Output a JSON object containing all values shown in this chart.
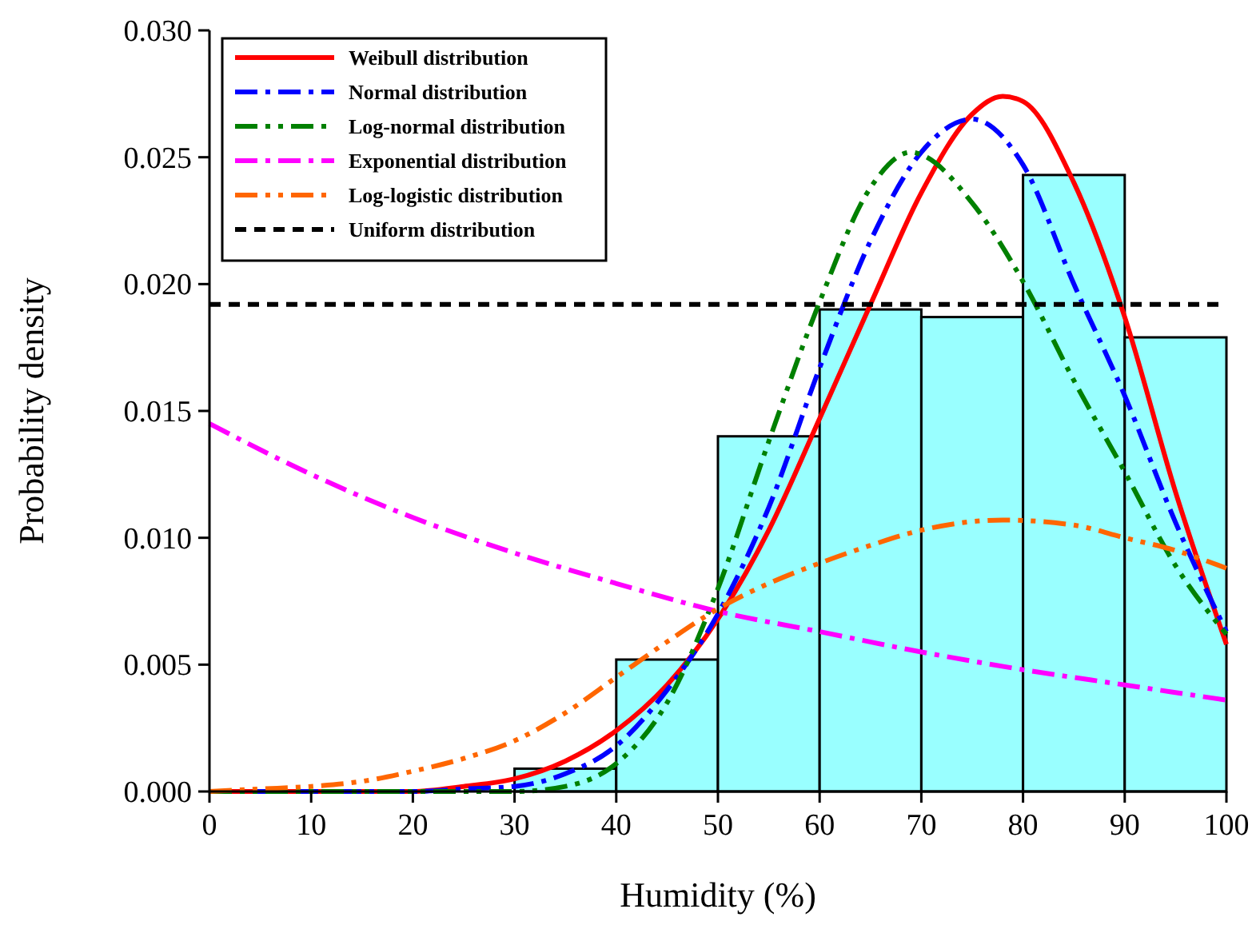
{
  "chart_data": {
    "type": "histogram",
    "xlabel": "Humidity (%)",
    "ylabel": "Probability density",
    "bins": [
      30,
      40,
      50,
      60,
      70,
      80,
      90,
      100
    ],
    "values": [
      0.0009,
      0.0052,
      0.014,
      0.019,
      0.0187,
      0.0243,
      0.0179
    ],
    "color": "#99ffff",
    "xlim": [
      0,
      100
    ],
    "xticks": [
      0,
      10,
      20,
      30,
      40,
      50,
      60,
      70,
      80,
      90,
      100
    ],
    "ylim": [
      0,
      0.03
    ],
    "yticks": [
      {
        "value": 0,
        "label": "0.000"
      },
      {
        "value": 0.005,
        "label": "0.005"
      },
      {
        "value": 0.01,
        "label": "0.010"
      },
      {
        "value": 0.015,
        "label": "0.015"
      },
      {
        "value": 0.02,
        "label": "0.020"
      },
      {
        "value": 0.025,
        "label": "0.025"
      },
      {
        "value": 0.03,
        "label": "0.030"
      }
    ],
    "grid": false,
    "legend": "top left",
    "series": [
      {
        "type": "line",
        "name": "Weibull distribution",
        "color": "#ff0000",
        "line_style": "solid",
        "x": [
          0,
          10,
          20,
          25,
          30,
          35,
          40,
          45,
          50,
          55,
          60,
          65,
          70,
          75,
          78,
          80,
          85,
          90,
          95,
          100
        ],
        "values": [
          0,
          0,
          0,
          0.0002,
          0.0005,
          0.0012,
          0.0024,
          0.0042,
          0.0068,
          0.0103,
          0.0147,
          0.0192,
          0.0236,
          0.0267,
          0.0274,
          0.0272,
          0.024,
          0.0187,
          0.0118,
          0.0058
        ]
      },
      {
        "type": "line",
        "name": "Normal distribution",
        "color": "#0000ff",
        "line_style": "dashdot",
        "x": [
          0,
          10,
          20,
          25,
          30,
          35,
          40,
          45,
          50,
          55,
          60,
          65,
          70,
          75,
          80,
          85,
          90,
          95,
          100
        ],
        "values": [
          0,
          0,
          0,
          0.0001,
          0.0002,
          0.0007,
          0.0018,
          0.004,
          0.007,
          0.0112,
          0.0167,
          0.0217,
          0.0252,
          0.0265,
          0.0247,
          0.02,
          0.0156,
          0.0106,
          0.0063
        ]
      },
      {
        "type": "line",
        "name": "Log-normal distribution",
        "color": "#008000",
        "line_style": "dashdotdot",
        "x": [
          0,
          10,
          20,
          25,
          30,
          35,
          40,
          45,
          50,
          55,
          60,
          65,
          69,
          70,
          75,
          80,
          85,
          90,
          95,
          100
        ],
        "values": [
          0,
          0,
          0,
          0,
          0,
          0.0002,
          0.0011,
          0.0035,
          0.008,
          0.0138,
          0.0193,
          0.0238,
          0.0252,
          0.0251,
          0.0232,
          0.0201,
          0.0162,
          0.0126,
          0.0089,
          0.0062
        ]
      },
      {
        "type": "line",
        "name": "Exponential distribution",
        "color": "#ff00ff",
        "line_style": "dashdot",
        "x": [
          0,
          10,
          20,
          30,
          40,
          50,
          60,
          70,
          80,
          90,
          100
        ],
        "values": [
          0.0145,
          0.0125,
          0.0108,
          0.0094,
          0.0082,
          0.0071,
          0.0063,
          0.0055,
          0.0048,
          0.0042,
          0.0036
        ]
      },
      {
        "type": "line",
        "name": "Log-logistic distribution",
        "color": "#ff6600",
        "line_style": "dashdotdot",
        "x": [
          0,
          5,
          10,
          15,
          20,
          25,
          30,
          35,
          40,
          45,
          50,
          55,
          60,
          65,
          70,
          78,
          85,
          90,
          95,
          100
        ],
        "values": [
          0,
          0.0001,
          0.0002,
          0.0004,
          0.0008,
          0.0013,
          0.002,
          0.0031,
          0.0045,
          0.0059,
          0.0072,
          0.0082,
          0.009,
          0.0097,
          0.0103,
          0.0107,
          0.0105,
          0.01,
          0.0095,
          0.0088
        ]
      },
      {
        "type": "line",
        "name": "Uniform distribution",
        "color": "#000000",
        "line_style": "dashed",
        "x": [
          0,
          100
        ],
        "values": [
          0.0192,
          0.0192
        ]
      }
    ]
  }
}
